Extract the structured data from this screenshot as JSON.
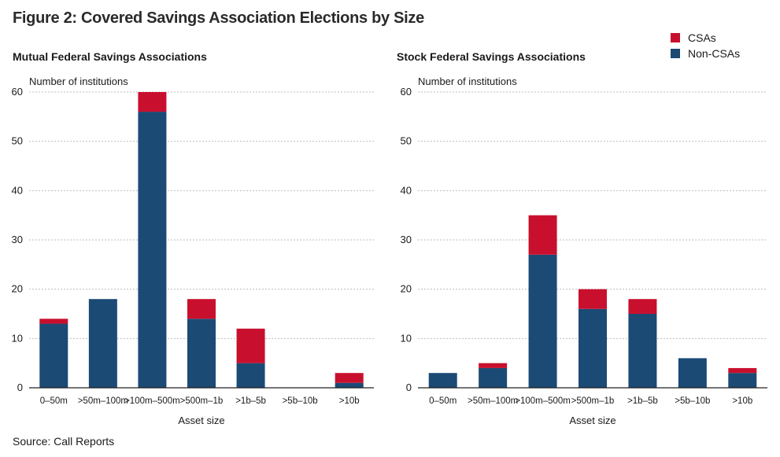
{
  "figure_title": "Figure 2:  Covered Savings Association Elections by Size",
  "source": "Source: Call Reports",
  "legend": [
    {
      "label": "CSAs",
      "color": "#c8102e"
    },
    {
      "label": "Non-CSAs",
      "color": "#1b4a75"
    }
  ],
  "colors": {
    "csa": "#c8102e",
    "non_csa": "#1b4a75",
    "grid": "#bdbdbd",
    "axis": "#222222"
  },
  "chart_data": [
    {
      "type": "bar",
      "stacked": true,
      "title": "Mutual Federal Savings Associations",
      "ylabel": "Number of institutions",
      "xlabel": "Asset size",
      "ylim": [
        0,
        60
      ],
      "yticks": [
        0,
        10,
        20,
        30,
        40,
        50,
        60
      ],
      "grid": true,
      "categories": [
        "0–50m",
        ">50m–100m",
        ">100m–500m",
        ">500m–1b",
        ">1b–5b",
        ">5b–10b",
        ">10b"
      ],
      "series": [
        {
          "name": "Non-CSAs",
          "values": [
            13,
            18,
            56,
            14,
            5,
            0,
            1
          ]
        },
        {
          "name": "CSAs",
          "values": [
            1,
            0,
            4,
            4,
            7,
            0,
            2
          ]
        }
      ]
    },
    {
      "type": "bar",
      "stacked": true,
      "title": "Stock Federal Savings Associations",
      "ylabel": "Number of institutions",
      "xlabel": "Asset size",
      "ylim": [
        0,
        60
      ],
      "yticks": [
        0,
        10,
        20,
        30,
        40,
        50,
        60
      ],
      "grid": true,
      "categories": [
        "0–50m",
        ">50m–100m",
        ">100m–500m",
        ">500m–1b",
        ">1b–5b",
        ">5b–10b",
        ">10b"
      ],
      "series": [
        {
          "name": "Non-CSAs",
          "values": [
            3,
            4,
            27,
            16,
            15,
            6,
            3
          ]
        },
        {
          "name": "CSAs",
          "values": [
            0,
            1,
            8,
            4,
            3,
            0,
            1
          ]
        }
      ]
    }
  ]
}
